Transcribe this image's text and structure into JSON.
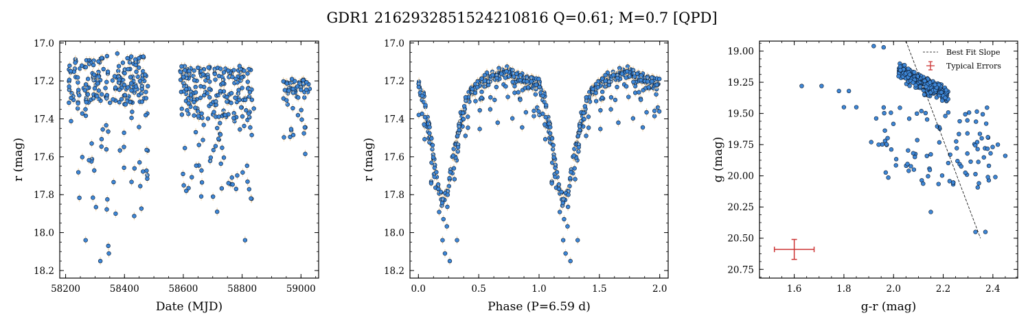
{
  "figure": {
    "title": "GDR1 2162932851524210816  Q=0.61; M=0.7 [QPD]",
    "colors": {
      "point": "#3d86d6",
      "edge": "#0d1b2e",
      "errorbar": "#f0d2a6",
      "typical_error": "#cc3333",
      "fit": "#000000"
    }
  },
  "chart_data": [
    {
      "type": "scatter",
      "xlabel": "Date (MJD)",
      "ylabel": "r (mag)",
      "xlim": [
        58180,
        59060
      ],
      "ylim": [
        18.24,
        16.99
      ],
      "y_inverted": true,
      "grid": false,
      "xticks": [
        58200,
        58400,
        58600,
        58800,
        59000
      ],
      "xtick_labels": [
        "58200",
        "58400",
        "58600",
        "58800",
        "59000"
      ],
      "yticks": [
        17.0,
        17.2,
        17.4,
        17.6,
        17.8,
        18.0,
        18.2
      ],
      "ytick_labels": [
        "17.0",
        "17.2",
        "17.4",
        "17.6",
        "17.8",
        "18.0",
        "18.2"
      ],
      "seasons": [
        {
          "x_range": [
            58210,
            58480
          ],
          "y_dense": [
            17.07,
            17.32
          ],
          "y_range": [
            17.05,
            18.16
          ]
        },
        {
          "x_range": [
            58590,
            58840
          ],
          "y_dense": [
            17.13,
            17.4
          ],
          "y_range": [
            17.12,
            18.05
          ]
        },
        {
          "x_range": [
            58940,
            59030
          ],
          "y_dense": [
            17.19,
            17.26
          ],
          "y_range": [
            17.19,
            17.7
          ]
        }
      ],
      "highlights": [
        {
          "x": 58268,
          "y": 18.04
        },
        {
          "x": 58318,
          "y": 18.15
        },
        {
          "x": 58345,
          "y": 18.07
        },
        {
          "x": 58347,
          "y": 18.11
        },
        {
          "x": 58810,
          "y": 18.04
        },
        {
          "x": 58610,
          "y": 17.78
        },
        {
          "x": 58715,
          "y": 17.89
        },
        {
          "x": 58830,
          "y": 17.82
        },
        {
          "x": 58370,
          "y": 17.9
        }
      ]
    },
    {
      "type": "scatter",
      "xlabel": "Phase (P=6.59 d)",
      "ylabel": "r (mag)",
      "xlim": [
        -0.07,
        2.07
      ],
      "ylim": [
        18.24,
        16.99
      ],
      "y_inverted": true,
      "grid": false,
      "xticks": [
        0.0,
        0.5,
        1.0,
        1.5,
        2.0
      ],
      "xtick_labels": [
        "0.0",
        "0.5",
        "1.0",
        "1.5",
        "2.0"
      ],
      "yticks": [
        17.0,
        17.2,
        17.4,
        17.6,
        17.8,
        18.0,
        18.2
      ],
      "ytick_labels": [
        "17.0",
        "17.2",
        "17.4",
        "17.6",
        "17.8",
        "18.0",
        "18.2"
      ],
      "period_days": 6.59,
      "curve_phase": [
        0.0,
        0.05,
        0.1,
        0.15,
        0.2,
        0.25,
        0.3,
        0.35,
        0.4,
        0.45,
        0.5,
        0.55,
        0.6,
        0.65,
        0.7,
        0.75,
        0.8,
        0.85,
        0.9,
        0.95,
        1.0
      ],
      "curve_mag": [
        17.22,
        17.3,
        17.5,
        17.7,
        17.85,
        17.75,
        17.55,
        17.4,
        17.3,
        17.25,
        17.22,
        17.2,
        17.18,
        17.17,
        17.16,
        17.16,
        17.17,
        17.18,
        17.2,
        17.21,
        17.22
      ],
      "highlights": [
        {
          "x": 0.2,
          "y": 18.04
        },
        {
          "x": 0.22,
          "y": 18.11
        },
        {
          "x": 0.26,
          "y": 18.15
        },
        {
          "x": 0.32,
          "y": 18.04
        },
        {
          "x": 1.2,
          "y": 18.04
        },
        {
          "x": 1.22,
          "y": 18.11
        },
        {
          "x": 1.26,
          "y": 18.15
        },
        {
          "x": 1.32,
          "y": 18.04
        }
      ]
    },
    {
      "type": "scatter",
      "xlabel": "g-r (mag)",
      "ylabel": "g (mag)",
      "xlim": [
        1.46,
        2.5
      ],
      "ylim": [
        20.82,
        18.92
      ],
      "y_inverted": true,
      "grid": false,
      "xticks": [
        1.6,
        1.8,
        2.0,
        2.2,
        2.4
      ],
      "xtick_labels": [
        "1.6",
        "1.8",
        "2.0",
        "2.2",
        "2.4"
      ],
      "yticks": [
        19.0,
        19.25,
        19.5,
        19.75,
        20.0,
        20.25,
        20.5,
        20.75
      ],
      "ytick_labels": [
        "19.00",
        "19.25",
        "19.50",
        "19.75",
        "20.00",
        "20.25",
        "20.50",
        "20.75"
      ],
      "best_fit_line": {
        "x": [
          2.05,
          2.35
        ],
        "y": [
          18.92,
          20.5
        ]
      },
      "typical_error": {
        "x": 1.6,
        "y": 20.59,
        "xerr": 0.08,
        "yerr": 0.08
      },
      "legend": {
        "placement": "top-right",
        "entries": [
          "Best Fit Slope",
          "Typical Errors"
        ]
      },
      "outliers": [
        {
          "x": 1.63,
          "y": 19.28
        },
        {
          "x": 1.71,
          "y": 19.28
        },
        {
          "x": 1.78,
          "y": 19.32
        },
        {
          "x": 1.82,
          "y": 19.32
        },
        {
          "x": 1.8,
          "y": 19.45
        },
        {
          "x": 1.85,
          "y": 19.45
        },
        {
          "x": 1.91,
          "y": 19.73
        },
        {
          "x": 1.93,
          "y": 19.54
        },
        {
          "x": 1.94,
          "y": 19.75
        },
        {
          "x": 2.45,
          "y": 19.84
        },
        {
          "x": 2.33,
          "y": 20.45
        },
        {
          "x": 2.37,
          "y": 20.45
        },
        {
          "x": 2.15,
          "y": 20.29
        },
        {
          "x": 2.38,
          "y": 20.01
        },
        {
          "x": 2.41,
          "y": 20.01
        },
        {
          "x": 2.42,
          "y": 19.75
        },
        {
          "x": 2.38,
          "y": 19.69
        },
        {
          "x": 1.92,
          "y": 18.96
        },
        {
          "x": 1.96,
          "y": 18.97
        }
      ]
    }
  ]
}
